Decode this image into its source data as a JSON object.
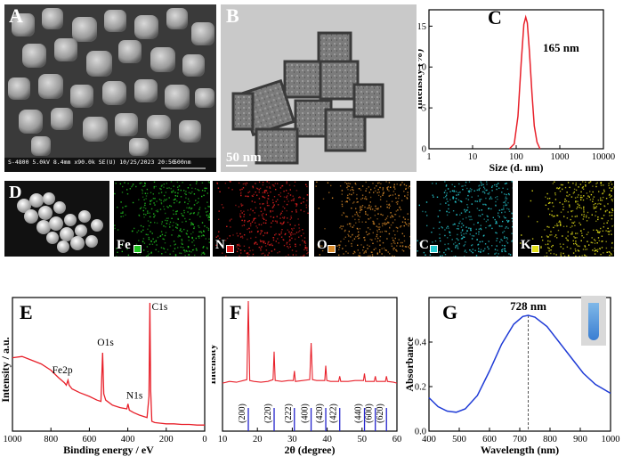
{
  "figure": {
    "panels": {
      "A": {
        "label": "A",
        "info_bar": "S-4800 5.0kV 8.4mm x90.0k SE(U) 10/25/2023 20:50",
        "scale_text": "500nm"
      },
      "B": {
        "label": "B",
        "scale_text": "50 nm"
      },
      "D": {
        "label": "D"
      },
      "C": {
        "label": "C"
      },
      "E": {
        "label": "E"
      },
      "F": {
        "label": "F"
      },
      "G": {
        "label": "G"
      }
    },
    "eds_maps": [
      {
        "element": "Fe",
        "color": "#22c522"
      },
      {
        "element": "N",
        "color": "#e02020"
      },
      {
        "element": "O",
        "color": "#d98a2a"
      },
      {
        "element": "C",
        "color": "#27c9d0"
      },
      {
        "element": "K",
        "color": "#e3e01a"
      }
    ]
  },
  "chart_data": [
    {
      "id": "C",
      "type": "line",
      "xlabel": "Size (d. nm)",
      "ylabel": "Intensity (%)",
      "xscale": "log",
      "xlim": [
        1,
        10000
      ],
      "ylim": [
        0,
        17
      ],
      "xticks": [
        1,
        10,
        100,
        1000,
        10000
      ],
      "yticks": [
        0,
        5,
        10,
        15
      ],
      "annotation": "165 nm",
      "line_color": "#e8202a",
      "series": [
        {
          "x": [
            70,
            90,
            110,
            130,
            150,
            165,
            180,
            200,
            230,
            260,
            300,
            350
          ],
          "y": [
            0,
            0.6,
            4.0,
            10.5,
            15.2,
            16.1,
            15.4,
            12.0,
            6.8,
            2.8,
            0.8,
            0
          ]
        }
      ]
    },
    {
      "id": "E",
      "type": "line",
      "xlabel": "Binding energy / eV",
      "ylabel": "Intensity / a.u.",
      "xlim": [
        1000,
        0
      ],
      "xticks": [
        1000,
        800,
        600,
        400,
        200,
        0
      ],
      "line_color": "#e8202a",
      "peak_labels": [
        "C1s",
        "O1s",
        "N1s",
        "Fe2p"
      ],
      "peaks": [
        {
          "label": "C1s",
          "x": 285
        },
        {
          "label": "O1s",
          "x": 531
        },
        {
          "label": "N1s",
          "x": 399
        },
        {
          "label": "Fe2p",
          "x": 710
        }
      ],
      "series": [
        {
          "x": [
            1000,
            950,
            900,
            850,
            800,
            760,
            730,
            720,
            711,
            705,
            690,
            650,
            600,
            560,
            540,
            531,
            525,
            515,
            480,
            440,
            405,
            399,
            392,
            370,
            340,
            300,
            290,
            285,
            281,
            275,
            260,
            230,
            200,
            160,
            120,
            80,
            40,
            0
          ],
          "y": [
            56,
            57,
            54,
            51,
            46,
            40,
            36,
            34,
            38,
            34,
            31,
            28,
            25,
            22,
            21,
            60,
            27,
            22,
            18,
            16,
            15,
            19,
            14,
            12,
            10,
            8,
            25,
            100,
            30,
            5,
            4,
            3.5,
            3,
            3,
            2.5,
            2.5,
            2,
            2
          ]
        }
      ]
    },
    {
      "id": "F",
      "type": "line",
      "xlabel": "2θ (degree)",
      "ylabel": "Intensity",
      "xlim": [
        10,
        60
      ],
      "xticks": [
        10,
        20,
        30,
        40,
        50,
        60
      ],
      "line_color": "#e8202a",
      "ref_color": "#2323cc",
      "reference_peaks": [
        {
          "hkl": "(200)",
          "x": 17.4
        },
        {
          "hkl": "(220)",
          "x": 24.8
        },
        {
          "hkl": "(222)",
          "x": 30.6
        },
        {
          "hkl": "(400)",
          "x": 35.4
        },
        {
          "hkl": "(420)",
          "x": 39.6
        },
        {
          "hkl": "(422)",
          "x": 43.6
        },
        {
          "hkl": "(440)",
          "x": 50.7
        },
        {
          "hkl": "(600)",
          "x": 53.8
        },
        {
          "hkl": "(620)",
          "x": 57.0
        }
      ],
      "series": [
        {
          "x": [
            10,
            12,
            14,
            16,
            17,
            17.4,
            17.8,
            19,
            21,
            23,
            24.5,
            24.8,
            25.1,
            27,
            29,
            30.3,
            30.6,
            30.9,
            33,
            35,
            35.4,
            35.8,
            37,
            39.3,
            39.6,
            39.9,
            41,
            43.3,
            43.6,
            43.9,
            46,
            48,
            50.4,
            50.7,
            51,
            53.5,
            53.8,
            54.1,
            56.7,
            57,
            57.3,
            59,
            60
          ],
          "y": [
            6,
            8,
            7,
            9,
            10,
            100,
            9,
            8,
            7,
            8,
            10,
            42,
            9,
            8,
            9,
            9,
            20,
            8,
            9,
            10,
            52,
            10,
            9,
            9,
            26,
            9,
            8,
            8,
            14,
            8,
            8,
            9,
            9,
            17,
            8,
            8,
            14,
            8,
            8,
            14,
            8,
            7,
            6
          ]
        }
      ]
    },
    {
      "id": "G",
      "type": "line",
      "xlabel": "Wavelength (nm)",
      "ylabel": "Absorbance",
      "xlim": [
        400,
        1000
      ],
      "ylim": [
        0,
        0.6
      ],
      "xticks": [
        400,
        500,
        600,
        700,
        800,
        900,
        1000
      ],
      "yticks": [
        0.0,
        0.2,
        0.4
      ],
      "annotation": "728 nm",
      "peak_x": 728,
      "line_color": "#1f3bd6",
      "series": [
        {
          "x": [
            400,
            430,
            460,
            490,
            520,
            560,
            600,
            640,
            680,
            710,
            728,
            750,
            790,
            830,
            870,
            910,
            950,
            1000
          ],
          "y": [
            0.15,
            0.11,
            0.09,
            0.085,
            0.1,
            0.16,
            0.27,
            0.39,
            0.48,
            0.515,
            0.52,
            0.512,
            0.47,
            0.4,
            0.33,
            0.26,
            0.21,
            0.17
          ]
        }
      ]
    }
  ]
}
